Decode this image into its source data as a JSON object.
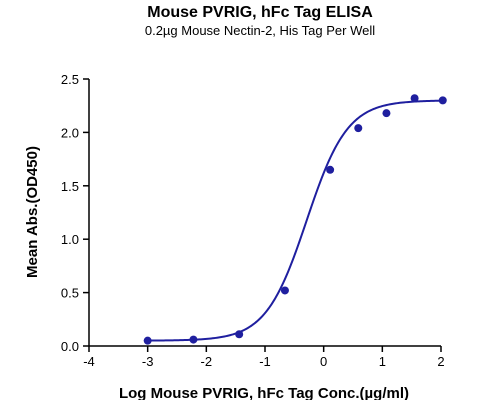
{
  "chart_data": {
    "type": "scatter",
    "title": "Mouse PVRIG, hFc Tag ELISA",
    "subtitle": "0.2µg Mouse Nectin-2, His Tag Per Well",
    "xlabel": "Log Mouse PVRIG, hFc Tag Conc.(µg/ml)",
    "ylabel": "Mean Abs.(OD450)",
    "xlim": [
      -4,
      2
    ],
    "ylim": [
      0,
      2.5
    ],
    "x_ticks": [
      "-4",
      "-3",
      "-2",
      "-1",
      "0",
      "1",
      "2"
    ],
    "y_ticks": [
      "0.0",
      "0.5",
      "1.0",
      "1.5",
      "2.0",
      "2.5"
    ],
    "grid": false,
    "series": [
      {
        "x": [
          -3.0,
          -2.22,
          -1.44,
          -0.66,
          0.11,
          0.59,
          1.07,
          1.55,
          2.03
        ],
        "y": [
          0.05,
          0.06,
          0.11,
          0.52,
          1.65,
          2.04,
          2.18,
          2.32,
          2.3
        ],
        "color": "#1f1f9f",
        "fit": "4PL sigmoid"
      }
    ]
  }
}
